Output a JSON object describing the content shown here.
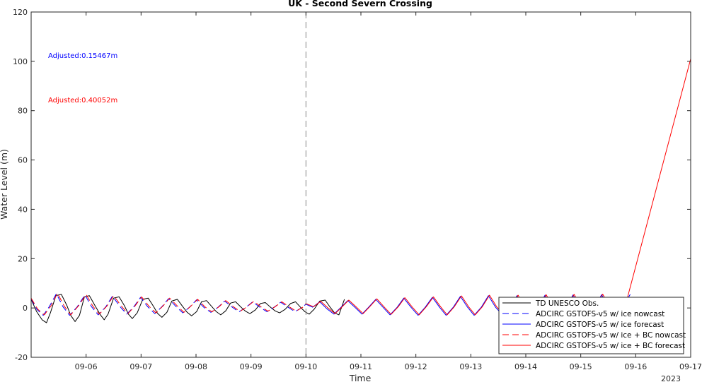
{
  "chart_data": {
    "type": "line",
    "title": "UK - Second Severn Crossing",
    "xlabel": "Time",
    "ylabel": "Water Level (m)",
    "ylim": [
      -20,
      120
    ],
    "yticks": [
      -20,
      0,
      20,
      40,
      60,
      80,
      100,
      120
    ],
    "xlim": [
      5.0,
      17.0
    ],
    "xticks": [
      6,
      7,
      8,
      9,
      10,
      11,
      12,
      13,
      14,
      15,
      16,
      17
    ],
    "xticklabels": [
      "09-06",
      "09-07",
      "09-08",
      "09-09",
      "09-10",
      "09-11",
      "09-12",
      "09-13",
      "09-14",
      "09-15",
      "09-16",
      "09-17"
    ],
    "year_label": "2023",
    "nowcast_divider_x": 10.0,
    "grid": false,
    "legend_position": "bottom-right",
    "annotations": [
      {
        "text": "Adjusted:0.15467m",
        "color": "#0000ff"
      },
      {
        "text": "Adjusted:0.40052m",
        "color": "#ff0000"
      }
    ],
    "series": [
      {
        "name": "TD UNESCO Obs.",
        "color": "#000000",
        "dash": "solid",
        "x": [
          5.0,
          5.1,
          5.2,
          5.28,
          5.35,
          5.45,
          5.55,
          5.65,
          5.72,
          5.8,
          5.88,
          5.97,
          6.06,
          6.16,
          6.26,
          6.33,
          6.4,
          6.5,
          6.6,
          6.7,
          6.77,
          6.84,
          6.93,
          7.03,
          7.13,
          7.23,
          7.3,
          7.38,
          7.47,
          7.56,
          7.66,
          7.76,
          7.84,
          7.92,
          8.01,
          8.1,
          8.19,
          8.29,
          8.37,
          8.45,
          8.54,
          8.63,
          8.72,
          8.82,
          8.9,
          8.98,
          9.08,
          9.17,
          9.26,
          9.36,
          9.44,
          9.52,
          9.62,
          9.72,
          9.81,
          9.9,
          9.98,
          10.06,
          10.15,
          10.25,
          10.35,
          10.44,
          10.52,
          10.6,
          10.7
        ],
        "y": [
          3.5,
          -1.5,
          -4.8,
          -6.0,
          -2.0,
          5.0,
          5.5,
          1.0,
          -3.0,
          -5.5,
          -3.0,
          4.5,
          5.0,
          1.0,
          -2.8,
          -4.8,
          -2.5,
          4.0,
          4.5,
          0.8,
          -2.5,
          -4.3,
          -2.0,
          3.5,
          4.0,
          0.5,
          -2.2,
          -3.8,
          -1.8,
          2.8,
          3.5,
          0.5,
          -1.8,
          -3.2,
          -1.5,
          2.5,
          3.0,
          0.5,
          -1.5,
          -2.8,
          -1.2,
          2.0,
          2.5,
          0.3,
          -1.3,
          -2.3,
          -0.8,
          1.8,
          2.2,
          0.2,
          -1.2,
          -2.0,
          -0.6,
          1.8,
          2.5,
          0.3,
          -1.5,
          -2.5,
          -0.5,
          2.8,
          3.2,
          0.3,
          -2.0,
          -2.8,
          3.5
        ]
      },
      {
        "name": "ADCIRC GSTOFS-v5 w/ ice nowcast",
        "color": "#0000ff",
        "dash": "dashed",
        "x": [
          5.0,
          5.1,
          5.22,
          5.33,
          5.46,
          5.58,
          5.7,
          5.84,
          5.98,
          6.1,
          6.22,
          6.36,
          6.48,
          6.62,
          6.74,
          6.87,
          6.99,
          7.12,
          7.25,
          7.38,
          7.5,
          7.64,
          7.76,
          7.89,
          8.01,
          8.14,
          8.27,
          8.4,
          8.52,
          8.66,
          8.78,
          8.91,
          9.03,
          9.16,
          9.29,
          9.42,
          9.54,
          9.68,
          9.8,
          9.93,
          10.0
        ],
        "y": [
          3.8,
          -0.5,
          -3.0,
          0.5,
          5.8,
          0.5,
          -3.0,
          0.5,
          5.3,
          0.5,
          -2.8,
          0.5,
          4.8,
          0.5,
          -2.5,
          0.5,
          4.3,
          0.5,
          -2.3,
          0.5,
          3.8,
          0.5,
          -2.0,
          0.5,
          3.3,
          0.3,
          -1.8,
          0.3,
          2.8,
          0.3,
          -1.6,
          0.3,
          2.5,
          0.3,
          -1.5,
          0.3,
          2.3,
          0.2,
          -1.5,
          0.2,
          1.5
        ]
      },
      {
        "name": "ADCIRC GSTOFS-v5 w/ ice forecast",
        "color": "#0000ff",
        "dash": "solid",
        "x": [
          10.0,
          10.12,
          10.25,
          10.38,
          10.51,
          10.64,
          10.76,
          10.89,
          11.02,
          11.14,
          11.27,
          11.4,
          11.53,
          11.66,
          11.78,
          11.91,
          12.04,
          12.17,
          12.3,
          12.43,
          12.55,
          12.68,
          12.81,
          12.94,
          13.06,
          13.19,
          13.32,
          13.45,
          13.58,
          13.71,
          13.84,
          13.96,
          14.09,
          14.22,
          14.35,
          14.48,
          14.61,
          14.73,
          14.86,
          14.99,
          15.12,
          15.25,
          15.38,
          15.51,
          15.63,
          15.76,
          15.9
        ],
        "y": [
          1.5,
          0.3,
          2.5,
          -0.3,
          -2.5,
          0.3,
          3.0,
          0.3,
          -2.5,
          0.3,
          3.5,
          0.3,
          -2.8,
          0.3,
          4.0,
          0.3,
          -3.0,
          0.3,
          4.3,
          0.3,
          -3.0,
          0.3,
          4.7,
          0.3,
          -3.0,
          0.3,
          5.0,
          0.3,
          -3.0,
          0.3,
          5.0,
          0.3,
          -3.0,
          0.3,
          5.2,
          0.3,
          -3.0,
          0.3,
          5.3,
          0.3,
          -3.0,
          0.3,
          5.4,
          0.3,
          -3.0,
          0.3,
          5.5
        ]
      },
      {
        "name": "ADCIRC GSTOFS-v5 w/ ice + BC nowcast",
        "color": "#ff0000",
        "dash": "dashed",
        "x": [
          5.0,
          5.12,
          5.24,
          5.36,
          5.48,
          5.6,
          5.72,
          5.86,
          6.0,
          6.12,
          6.24,
          6.38,
          6.5,
          6.64,
          6.76,
          6.89,
          7.01,
          7.14,
          7.27,
          7.4,
          7.52,
          7.66,
          7.78,
          7.91,
          8.03,
          8.16,
          8.29,
          8.42,
          8.54,
          8.68,
          8.8,
          8.93,
          9.05,
          9.18,
          9.31,
          9.44,
          9.56,
          9.7,
          9.82,
          9.95,
          10.0
        ],
        "y": [
          4.0,
          -0.5,
          -2.8,
          0.8,
          6.0,
          0.8,
          -2.8,
          0.8,
          5.5,
          0.8,
          -2.5,
          0.8,
          5.0,
          0.8,
          -2.3,
          0.8,
          4.5,
          0.8,
          -2.0,
          0.8,
          4.0,
          0.8,
          -1.8,
          0.8,
          3.5,
          0.5,
          -1.6,
          0.5,
          3.0,
          0.5,
          -1.4,
          0.5,
          2.7,
          0.5,
          -1.3,
          0.5,
          2.5,
          0.4,
          -1.3,
          0.4,
          1.8
        ]
      },
      {
        "name": "ADCIRC GSTOFS-v5 w/ ice + BC forecast",
        "color": "#ff0000",
        "dash": "solid",
        "x": [
          10.0,
          10.14,
          10.27,
          10.4,
          10.53,
          10.66,
          10.78,
          10.91,
          11.04,
          11.16,
          11.29,
          11.42,
          11.55,
          11.68,
          11.8,
          11.93,
          12.06,
          12.19,
          12.32,
          12.45,
          12.57,
          12.7,
          12.83,
          12.96,
          13.08,
          13.21,
          13.34,
          13.47,
          13.6,
          13.73,
          13.86,
          13.98,
          14.11,
          14.24,
          14.37,
          14.5,
          14.63,
          14.75,
          14.88,
          15.01,
          15.14,
          15.27,
          15.4,
          15.53,
          15.65,
          15.78,
          15.8,
          17.0
        ],
        "y": [
          1.8,
          0.5,
          2.7,
          0.0,
          -2.3,
          0.5,
          3.2,
          0.5,
          -2.3,
          0.5,
          3.7,
          0.5,
          -2.6,
          0.5,
          4.2,
          0.5,
          -2.8,
          0.5,
          4.5,
          0.5,
          -2.8,
          0.5,
          4.9,
          0.5,
          -2.8,
          0.5,
          5.2,
          0.5,
          -2.8,
          0.5,
          5.2,
          0.5,
          -2.8,
          0.5,
          5.4,
          0.5,
          -2.8,
          0.5,
          5.5,
          0.5,
          -2.8,
          0.5,
          5.6,
          0.5,
          -2.8,
          0.5,
          0.0,
          101.0
        ]
      }
    ]
  }
}
